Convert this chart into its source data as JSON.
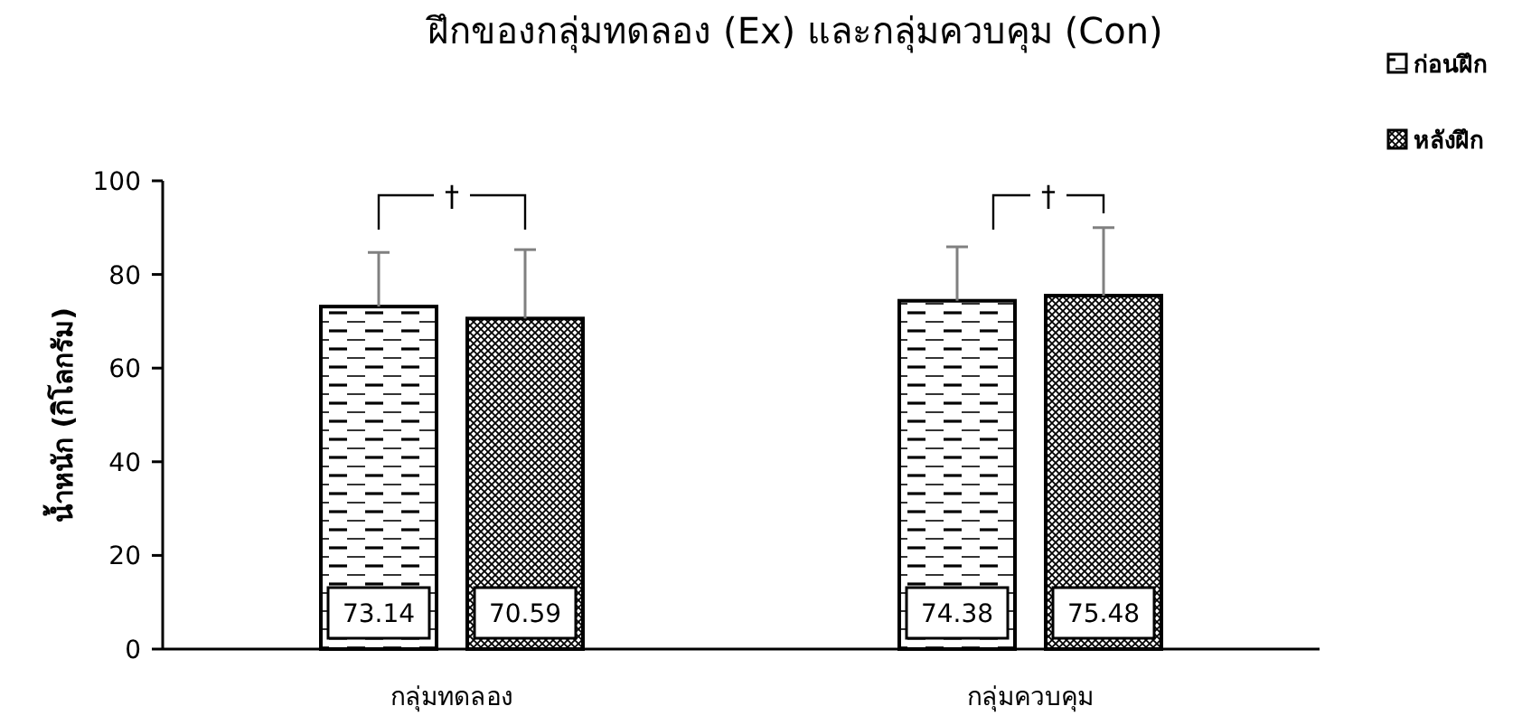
{
  "chart_data": {
    "type": "bar",
    "title": "ฝึกของกลุ่มทดลอง (Ex) และกลุ่มควบคุม (Con)",
    "ylabel": "น้ำหนัก (กิโลกรัม)",
    "categories": [
      "กลุ่มทดลอง",
      "กลุ่มควบคุม"
    ],
    "series": [
      {
        "name": "ก่อนฝึก",
        "color": "#000000",
        "values": [
          73.14,
          74.38
        ],
        "errors": [
          [
            73.14,
            84.7
          ],
          [
            74.38,
            85.9
          ]
        ]
      },
      {
        "name": "หลังฝึก",
        "color": "#000000",
        "values": [
          70.59,
          75.48
        ],
        "errors": [
          [
            70.59,
            85.3
          ],
          [
            75.48,
            90.0
          ]
        ]
      }
    ],
    "ylim": [
      0,
      100
    ],
    "yticks": [
      0,
      20,
      40,
      60,
      80,
      100
    ],
    "grid": false,
    "legend": "top right",
    "data_labels": true,
    "annotations": [
      "†",
      "†"
    ]
  }
}
